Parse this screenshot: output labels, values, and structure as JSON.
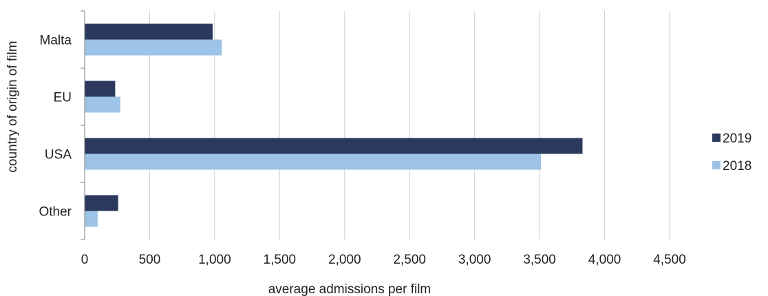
{
  "chart_data": {
    "type": "bar",
    "orientation": "horizontal",
    "categories": [
      "Malta",
      "EU",
      "USA",
      "Other"
    ],
    "series": [
      {
        "name": "2019",
        "color": "#2b3a5c",
        "values": [
          985,
          235,
          3830,
          258
        ]
      },
      {
        "name": "2018",
        "color": "#9dc3e6",
        "values": [
          1055,
          275,
          3510,
          100
        ]
      }
    ],
    "xlabel": "average admissions per film",
    "ylabel": "country  of origin of film",
    "xlim": [
      0,
      4500
    ],
    "xticks": [
      0,
      500,
      1000,
      1500,
      2000,
      2500,
      3000,
      3500,
      4000,
      4500
    ],
    "xtick_labels": [
      "0",
      "500",
      "1,000",
      "1,500",
      "2,000",
      "2,500",
      "3,000",
      "3,500",
      "4,000",
      "4,500"
    ],
    "grid": "vertical",
    "legend_position": "right"
  }
}
